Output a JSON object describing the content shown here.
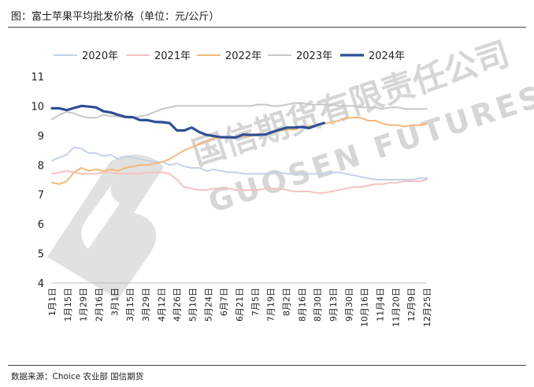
{
  "title": "图：富士苹果平均批发价格（单位：元/公斤）",
  "source": "数据来源：Choice 农业部 国信期货",
  "watermark": {
    "cn": "国信期货有限责任公司",
    "en": "GUOSEN FUTURES CO"
  },
  "chart_data": {
    "type": "line",
    "ylim": [
      4,
      11
    ],
    "yticks": [
      4,
      5,
      6,
      7,
      8,
      9,
      10,
      11
    ],
    "grid": false,
    "legend_position": "top",
    "n_weeks": 52,
    "xtick_labels": [
      "1月1日",
      "1月15日",
      "1月29日",
      "2月16日",
      "3月1日",
      "3月15日",
      "3月29日",
      "4月12日",
      "4月26日",
      "5月10日",
      "5月24日",
      "6月7日",
      "6月21日",
      "7月5日",
      "7月19日",
      "8月2日",
      "8月16日",
      "8月30日",
      "9月13日",
      "9月30日",
      "10月16日",
      "11月4日",
      "11月20日",
      "12月9日",
      "12月25日"
    ],
    "series": [
      {
        "name": "2020年",
        "color": "#c5d1e8",
        "width": 2,
        "values": [
          8.15,
          8.25,
          8.35,
          8.6,
          8.55,
          8.4,
          8.4,
          8.3,
          8.35,
          8.2,
          8.3,
          8.25,
          8.2,
          8.15,
          8.1,
          8.1,
          8.0,
          8.05,
          7.95,
          7.9,
          7.9,
          7.8,
          7.85,
          7.8,
          7.75,
          7.75,
          7.7,
          7.7,
          7.7,
          7.7,
          7.75,
          7.75,
          7.7,
          7.7,
          7.7,
          7.7,
          7.7,
          7.7,
          7.75,
          7.75,
          7.7,
          7.65,
          7.6,
          7.55,
          7.5,
          7.5,
          7.5,
          7.5,
          7.5,
          7.5,
          7.55,
          7.55
        ]
      },
      {
        "name": "2021年",
        "color": "#f4c2c2",
        "width": 2,
        "values": [
          7.7,
          7.75,
          7.8,
          7.75,
          7.7,
          7.7,
          7.7,
          7.75,
          7.75,
          7.7,
          7.7,
          7.7,
          7.7,
          7.75,
          7.75,
          7.75,
          7.7,
          7.5,
          7.25,
          7.2,
          7.15,
          7.15,
          7.2,
          7.2,
          7.2,
          7.15,
          7.15,
          7.15,
          7.15,
          7.2,
          7.2,
          7.2,
          7.15,
          7.1,
          7.1,
          7.1,
          7.05,
          7.05,
          7.1,
          7.15,
          7.2,
          7.25,
          7.25,
          7.3,
          7.35,
          7.35,
          7.4,
          7.4,
          7.45,
          7.45,
          7.45,
          7.5
        ]
      },
      {
        "name": "2022年",
        "color": "#f5b77a",
        "width": 2,
        "values": [
          7.4,
          7.35,
          7.45,
          7.75,
          7.9,
          7.8,
          7.85,
          7.8,
          7.85,
          7.8,
          7.9,
          7.95,
          8.0,
          8.0,
          8.05,
          8.1,
          8.2,
          8.35,
          8.5,
          8.6,
          8.7,
          8.8,
          8.9,
          8.95,
          8.95,
          8.95,
          8.95,
          9.0,
          9.05,
          9.05,
          9.1,
          9.15,
          9.2,
          9.2,
          9.3,
          9.3,
          9.35,
          9.4,
          9.45,
          9.5,
          9.6,
          9.6,
          9.6,
          9.5,
          9.5,
          9.4,
          9.35,
          9.35,
          9.3,
          9.35,
          9.35,
          9.4
        ]
      },
      {
        "name": "2023年",
        "color": "#c8c8c8",
        "width": 2,
        "values": [
          9.55,
          9.7,
          9.8,
          9.75,
          9.65,
          9.6,
          9.6,
          9.7,
          9.65,
          9.65,
          9.6,
          9.6,
          9.65,
          9.7,
          9.8,
          9.9,
          9.95,
          10.0,
          10.0,
          10.0,
          10.0,
          10.0,
          10.0,
          10.0,
          10.0,
          10.0,
          10.0,
          10.0,
          10.05,
          10.05,
          10.0,
          10.0,
          10.05,
          10.1,
          10.1,
          10.05,
          10.05,
          10.05,
          10.05,
          10.0,
          10.0,
          10.0,
          9.95,
          9.95,
          9.95,
          9.9,
          9.95,
          9.95,
          9.9,
          9.9,
          9.9,
          9.9
        ]
      },
      {
        "name": "2024年",
        "color": "#2f4f95",
        "width": 3.2,
        "values": [
          9.92,
          9.92,
          9.86,
          9.93,
          10.0,
          9.98,
          9.95,
          9.82,
          9.78,
          9.7,
          9.63,
          9.62,
          9.52,
          9.52,
          9.46,
          9.45,
          9.42,
          9.17,
          9.17,
          9.27,
          9.12,
          9.02,
          8.98,
          8.94,
          8.94,
          8.93,
          9.03,
          9.02,
          9.02,
          9.03,
          9.12,
          9.2,
          9.27,
          9.27,
          9.29,
          9.25,
          9.35,
          9.42
        ]
      }
    ]
  }
}
